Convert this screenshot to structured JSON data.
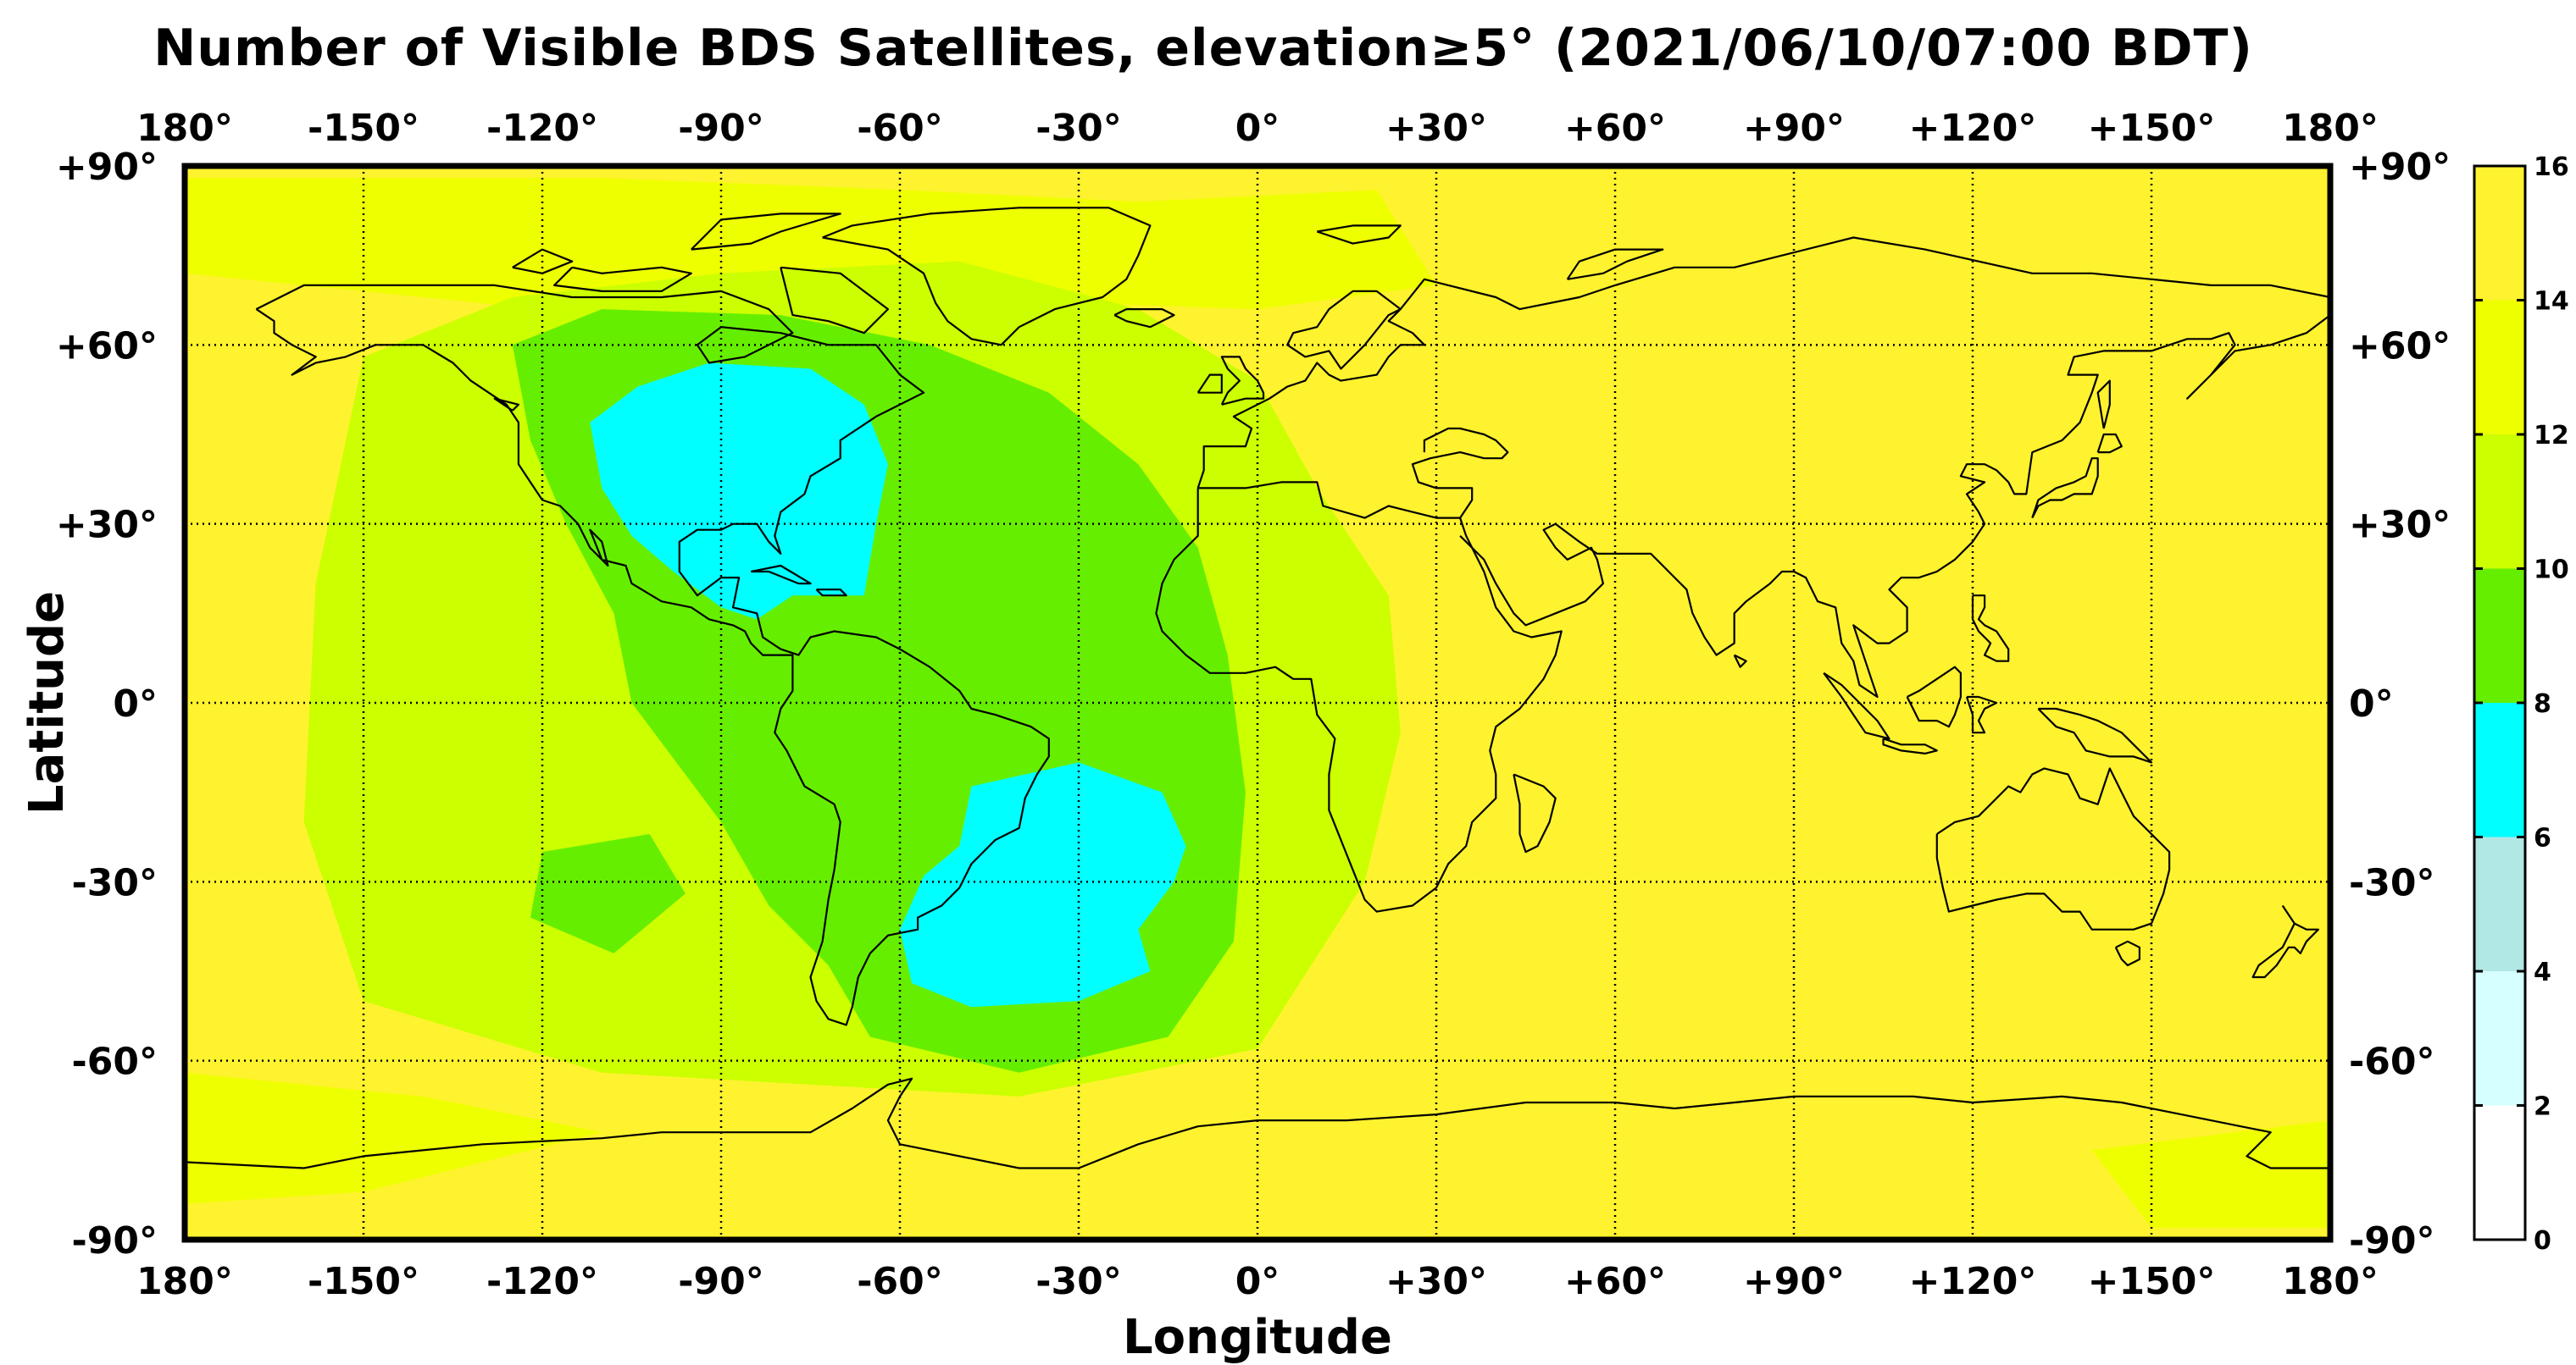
{
  "title": "Number of Visible BDS Satellites, elevation≥5° (2021/06/10/07:00 BDT)",
  "axes": {
    "xlabel": "Longitude",
    "ylabel": "Latitude",
    "x_ticks": [
      "180°",
      "-150°",
      "-120°",
      "-90°",
      "-60°",
      "-30°",
      "0°",
      "+30°",
      "+60°",
      "+90°",
      "+120°",
      "+150°",
      "180°"
    ],
    "y_ticks": [
      "+90°",
      "+60°",
      "+30°",
      "0°",
      "-30°",
      "-60°",
      "-90°"
    ],
    "x_range": [
      -180,
      180
    ],
    "y_range": [
      -90,
      90
    ],
    "grid": "dotted"
  },
  "colorbar": {
    "ticks": [
      "0",
      "2",
      "4",
      "6",
      "8",
      "10",
      "12",
      "14",
      "16"
    ],
    "range": [
      0,
      16
    ],
    "bands": [
      {
        "from": 0,
        "to": 2,
        "color": "#ffffff"
      },
      {
        "from": 2,
        "to": 4,
        "color": "#d6ffff"
      },
      {
        "from": 4,
        "to": 6,
        "color": "#b1e7e4"
      },
      {
        "from": 6,
        "to": 8,
        "color": "#00ffff"
      },
      {
        "from": 8,
        "to": 10,
        "color": "#66ee00"
      },
      {
        "from": 10,
        "to": 12,
        "color": "#ccff00"
      },
      {
        "from": 12,
        "to": 14,
        "color": "#eeff00"
      },
      {
        "from": 14,
        "to": 16,
        "color": "#fff22e"
      }
    ]
  },
  "map": {
    "background_value": 15,
    "regions": [
      {
        "name": "north-polar-band",
        "value": 13,
        "points": [
          [
            -180,
            88
          ],
          [
            -110,
            88
          ],
          [
            -60,
            86
          ],
          [
            -20,
            84
          ],
          [
            20,
            86
          ],
          [
            30,
            70
          ],
          [
            0,
            66
          ],
          [
            -60,
            68
          ],
          [
            -120,
            66
          ],
          [
            -160,
            70
          ],
          [
            -180,
            72
          ]
        ]
      },
      {
        "name": "western-ring",
        "value": 11,
        "points": [
          [
            -150,
            58
          ],
          [
            -125,
            68
          ],
          [
            -90,
            72
          ],
          [
            -50,
            74
          ],
          [
            -20,
            66
          ],
          [
            0,
            54
          ],
          [
            10,
            36
          ],
          [
            22,
            18
          ],
          [
            24,
            -5
          ],
          [
            18,
            -30
          ],
          [
            0,
            -58
          ],
          [
            -40,
            -66
          ],
          [
            -110,
            -62
          ],
          [
            -150,
            -50
          ],
          [
            -160,
            -20
          ],
          [
            -158,
            20
          ]
        ]
      },
      {
        "name": "americas-atlantic-core",
        "value": 9,
        "points": [
          [
            -125,
            60
          ],
          [
            -110,
            66
          ],
          [
            -80,
            65
          ],
          [
            -55,
            60
          ],
          [
            -35,
            52
          ],
          [
            -20,
            40
          ],
          [
            -10,
            26
          ],
          [
            -5,
            8
          ],
          [
            -2,
            -15
          ],
          [
            -4,
            -40
          ],
          [
            -15,
            -56
          ],
          [
            -40,
            -62
          ],
          [
            -65,
            -56
          ],
          [
            -72,
            -44
          ],
          [
            -82,
            -34
          ],
          [
            -90,
            -20
          ],
          [
            -105,
            0
          ],
          [
            -108,
            15
          ],
          [
            -116,
            30
          ],
          [
            -122,
            44
          ]
        ]
      },
      {
        "name": "south-pacific-patch",
        "value": 9,
        "points": [
          [
            -120,
            -25
          ],
          [
            -102,
            -22
          ],
          [
            -96,
            -32
          ],
          [
            -108,
            -42
          ],
          [
            -122,
            -36
          ]
        ]
      },
      {
        "name": "north-america-blue",
        "value": 7,
        "points": [
          [
            -112,
            47
          ],
          [
            -104,
            53
          ],
          [
            -92,
            57
          ],
          [
            -75,
            56
          ],
          [
            -66,
            50
          ],
          [
            -62,
            40
          ],
          [
            -64,
            30
          ],
          [
            -66,
            18
          ],
          [
            -78,
            18
          ],
          [
            -84,
            14
          ],
          [
            -90,
            16
          ],
          [
            -98,
            22
          ],
          [
            -105,
            28
          ],
          [
            -110,
            36
          ]
        ]
      },
      {
        "name": "south-atlantic-blue",
        "value": 7,
        "points": [
          [
            -48,
            -14
          ],
          [
            -30,
            -10
          ],
          [
            -16,
            -15
          ],
          [
            -12,
            -24
          ],
          [
            -14,
            -30
          ],
          [
            -20,
            -38
          ],
          [
            -18,
            -45
          ],
          [
            -30,
            -50
          ],
          [
            -48,
            -51
          ],
          [
            -58,
            -47
          ],
          [
            -60,
            -38
          ],
          [
            -56,
            -29
          ],
          [
            -50,
            -24
          ]
        ]
      },
      {
        "name": "antarctic-patch-west",
        "value": 13,
        "points": [
          [
            -180,
            -62
          ],
          [
            -140,
            -66
          ],
          [
            -110,
            -72
          ],
          [
            -150,
            -82
          ],
          [
            -180,
            -84
          ]
        ]
      },
      {
        "name": "antarctic-patch-east",
        "value": 13,
        "points": [
          [
            140,
            -75
          ],
          [
            180,
            -70
          ],
          [
            180,
            -88
          ],
          [
            150,
            -88
          ]
        ]
      }
    ],
    "coastline_color": "#000000"
  }
}
